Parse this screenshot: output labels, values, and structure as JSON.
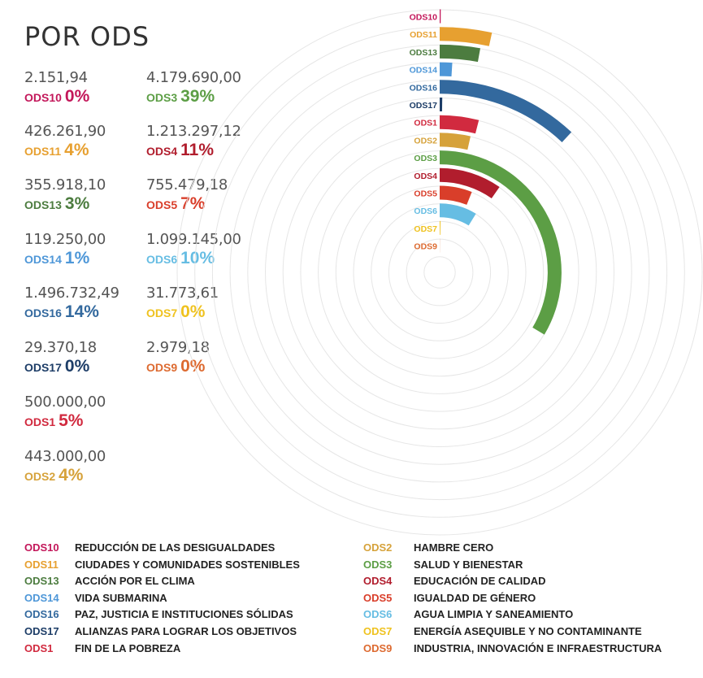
{
  "title": "POR ODS",
  "stats": [
    {
      "code": "ODS10",
      "amount": "2.151,94",
      "pct": "0%",
      "color": "#c3175a"
    },
    {
      "code": "ODS11",
      "amount": "426.261,90",
      "pct": "4%",
      "color": "#e7a030"
    },
    {
      "code": "ODS13",
      "amount": "355.918,10",
      "pct": "3%",
      "color": "#4c7c3f"
    },
    {
      "code": "ODS14",
      "amount": "119.250,00",
      "pct": "1%",
      "color": "#4e97d8"
    },
    {
      "code": "ODS16",
      "amount": "1.496.732,49",
      "pct": "14%",
      "color": "#33699e"
    },
    {
      "code": "ODS17",
      "amount": "29.370,18",
      "pct": "0%",
      "color": "#1d3d67"
    },
    {
      "code": "ODS1",
      "amount": "500.000,00",
      "pct": "5%",
      "color": "#d12a3f"
    },
    {
      "code": "ODS2",
      "amount": "443.000,00",
      "pct": "4%",
      "color": "#d6a23a"
    },
    {
      "code": "ODS3",
      "amount": "4.179.690,00",
      "pct": "39%",
      "color": "#5c9e45"
    },
    {
      "code": "ODS4",
      "amount": "1.213.297,12",
      "pct": "11%",
      "color": "#b11d2d"
    },
    {
      "code": "ODS5",
      "amount": "755.479,18",
      "pct": "7%",
      "color": "#d93e2a"
    },
    {
      "code": "ODS6",
      "amount": "1.099.145,00",
      "pct": "10%",
      "color": "#66bde3"
    },
    {
      "code": "ODS7",
      "amount": "31.773,61",
      "pct": "0%",
      "color": "#efc21f"
    },
    {
      "code": "ODS9",
      "amount": "2.979,18",
      "pct": "0%",
      "color": "#dd6a30"
    }
  ],
  "chart_data": {
    "type": "radial-bar",
    "categories": [
      "ODS10",
      "ODS11",
      "ODS13",
      "ODS14",
      "ODS16",
      "ODS17",
      "ODS1",
      "ODS2",
      "ODS3",
      "ODS4",
      "ODS5",
      "ODS6",
      "ODS7",
      "ODS9"
    ],
    "values": [
      2151.94,
      426261.9,
      355918.1,
      119250.0,
      1496732.49,
      29370.18,
      500000.0,
      443000.0,
      4179690.0,
      1213297.12,
      755479.18,
      1099145.0,
      31773.61,
      2979.18
    ],
    "percent": [
      0,
      4,
      3,
      1,
      14,
      0,
      5,
      4,
      39,
      11,
      7,
      10,
      0,
      0
    ],
    "colors": [
      "#c3175a",
      "#e7a030",
      "#4c7c3f",
      "#4e97d8",
      "#33699e",
      "#1d3d67",
      "#d12a3f",
      "#d6a23a",
      "#5c9e45",
      "#b11d2d",
      "#d93e2a",
      "#66bde3",
      "#efc21f",
      "#dd6a30"
    ],
    "grid": true
  },
  "legend": [
    {
      "code": "ODS10",
      "name": "REDUCCIÓN DE LAS DESIGUALDADES",
      "color": "#c3175a"
    },
    {
      "code": "ODS11",
      "name": "CIUDADES Y COMUNIDADES SOSTENIBLES",
      "color": "#e7a030"
    },
    {
      "code": "ODS13",
      "name": "ACCIÓN POR EL CLIMA",
      "color": "#4c7c3f"
    },
    {
      "code": "ODS14",
      "name": "VIDA SUBMARINA",
      "color": "#4e97d8"
    },
    {
      "code": "ODS16",
      "name": "PAZ, JUSTICIA E INSTITUCIONES SÓLIDAS",
      "color": "#33699e"
    },
    {
      "code": "ODS17",
      "name": "ALIANZAS PARA LOGRAR LOS OBJETIVOS",
      "color": "#1d3d67"
    },
    {
      "code": "ODS1",
      "name": "FIN DE LA POBREZA",
      "color": "#d12a3f"
    },
    {
      "code": "ODS2",
      "name": "HAMBRE CERO",
      "color": "#d6a23a"
    },
    {
      "code": "ODS3",
      "name": "SALUD Y BIENESTAR",
      "color": "#5c9e45"
    },
    {
      "code": "ODS4",
      "name": "EDUCACIÓN DE CALIDAD",
      "color": "#b11d2d"
    },
    {
      "code": "ODS5",
      "name": "IGUALDAD DE GÉNERO",
      "color": "#d93e2a"
    },
    {
      "code": "ODS6",
      "name": "AGUA LIMPIA Y SANEAMIENTO",
      "color": "#66bde3"
    },
    {
      "code": "ODS7",
      "name": "ENERGÍA ASEQUIBLE Y NO CONTAMINANTE",
      "color": "#efc21f"
    },
    {
      "code": "ODS9",
      "name": "INDUSTRIA, INNOVACIÓN E INFRAESTRUCTURA",
      "color": "#dd6a30"
    }
  ]
}
